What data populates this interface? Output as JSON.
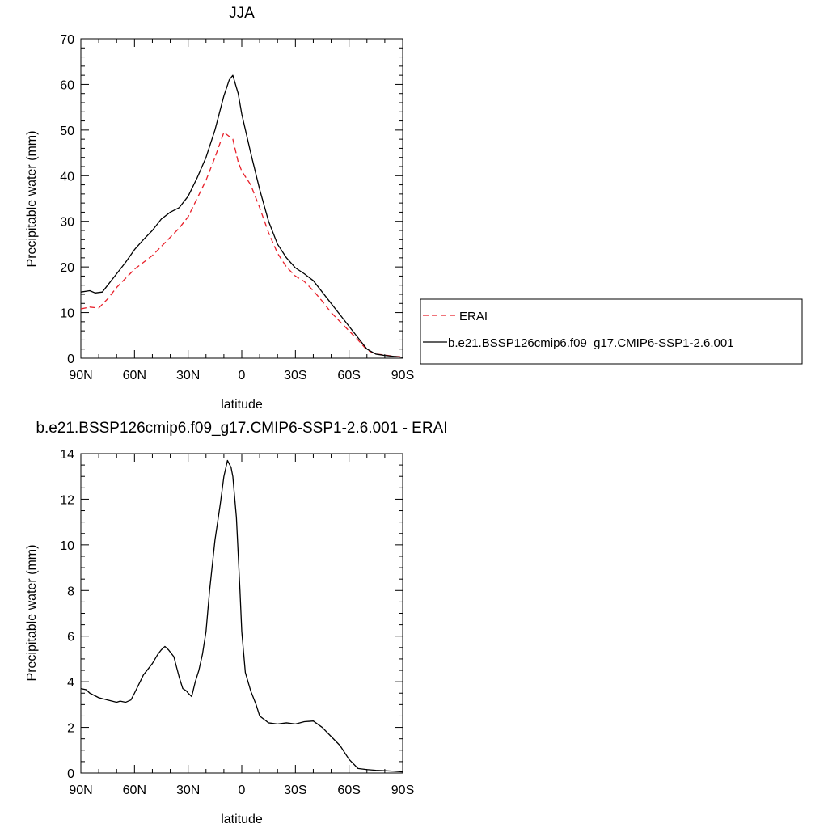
{
  "chart_data": [
    {
      "type": "line",
      "title": "JJA",
      "xlabel": "latitude",
      "ylabel": "Precipitable water (mm)",
      "xlim": [
        90,
        -90
      ],
      "ylim": [
        0,
        70
      ],
      "x_ticks": [
        90,
        60,
        30,
        0,
        -30,
        -60,
        -90
      ],
      "x_tick_labels": [
        "90N",
        "60N",
        "30N",
        "0",
        "30S",
        "60S",
        "90S"
      ],
      "y_ticks": [
        0,
        10,
        20,
        30,
        40,
        50,
        60,
        70
      ],
      "y_tick_labels": [
        "0",
        "10",
        "20",
        "30",
        "40",
        "50",
        "60",
        "70"
      ],
      "grid": false,
      "legend_position": "right",
      "series": [
        {
          "name": "ERAI",
          "color": "#e8202a",
          "dash": "dashed",
          "x": [
            90,
            85,
            80,
            75,
            70,
            65,
            60,
            55,
            50,
            45,
            40,
            35,
            30,
            25,
            20,
            15,
            10,
            5,
            2,
            0,
            -5,
            -10,
            -15,
            -20,
            -25,
            -30,
            -35,
            -40,
            -45,
            -50,
            -55,
            -60,
            -65,
            -70,
            -75,
            -80,
            -85,
            -90
          ],
          "values": [
            10.8,
            11.2,
            11.0,
            13.0,
            15.5,
            17.5,
            19.5,
            21.0,
            22.5,
            24.5,
            26.5,
            28.5,
            31.0,
            35.0,
            39.0,
            44.0,
            49.5,
            48.0,
            43.0,
            41.0,
            38.0,
            33.0,
            27.5,
            23.0,
            20.0,
            18.0,
            16.8,
            14.8,
            12.5,
            10.0,
            8.0,
            6.0,
            4.0,
            1.8,
            0.9,
            0.7,
            0.4,
            0.3
          ]
        },
        {
          "name": "b.e21.BSSP126cmip6.f09_g17.CMIP6-SSP1-2.6.001",
          "color": "#000000",
          "dash": "solid",
          "x": [
            90,
            85,
            82,
            78,
            75,
            70,
            65,
            60,
            55,
            50,
            45,
            40,
            35,
            30,
            25,
            20,
            15,
            10,
            7,
            5,
            2,
            0,
            -5,
            -10,
            -15,
            -20,
            -25,
            -30,
            -35,
            -40,
            -45,
            -50,
            -55,
            -60,
            -65,
            -70,
            -75,
            -80,
            -85,
            -90
          ],
          "values": [
            14.5,
            14.8,
            14.3,
            14.5,
            16.0,
            18.5,
            21.0,
            23.8,
            26.0,
            28.0,
            30.5,
            32.0,
            33.0,
            35.5,
            39.5,
            44.0,
            50.0,
            57.5,
            61.0,
            62.0,
            58.0,
            53.5,
            45.0,
            37.0,
            30.0,
            25.0,
            22.0,
            19.8,
            18.5,
            17.0,
            14.5,
            12.0,
            9.5,
            7.0,
            4.5,
            2.0,
            0.9,
            0.6,
            0.4,
            0.2
          ]
        }
      ]
    },
    {
      "type": "line",
      "title": "b.e21.BSSP126cmip6.f09_g17.CMIP6-SSP1-2.6.001 - ERAI",
      "xlabel": "latitude",
      "ylabel": "Precipitable water (mm)",
      "xlim": [
        90,
        -90
      ],
      "ylim": [
        0,
        14
      ],
      "x_ticks": [
        90,
        60,
        30,
        0,
        -30,
        -60,
        -90
      ],
      "x_tick_labels": [
        "90N",
        "60N",
        "30N",
        "0",
        "30S",
        "60S",
        "90S"
      ],
      "y_ticks": [
        0,
        2,
        4,
        6,
        8,
        10,
        12,
        14
      ],
      "y_tick_labels": [
        "0",
        "2",
        "4",
        "6",
        "8",
        "10",
        "12",
        "14"
      ],
      "grid": false,
      "series": [
        {
          "color": "#000000",
          "dash": "solid",
          "x": [
            90,
            87,
            85,
            80,
            75,
            70,
            68,
            65,
            62,
            60,
            55,
            50,
            47,
            45,
            43,
            41,
            40,
            38,
            35,
            33,
            31,
            30,
            28,
            26,
            24,
            22,
            20,
            18,
            15,
            12,
            10,
            8,
            6,
            5,
            3,
            1,
            0,
            -2,
            -5,
            -8,
            -10,
            -15,
            -20,
            -25,
            -30,
            -35,
            -40,
            -45,
            -50,
            -55,
            -60,
            -65,
            -70,
            -75,
            -80,
            -85,
            -90
          ],
          "values": [
            3.7,
            3.65,
            3.5,
            3.3,
            3.2,
            3.1,
            3.15,
            3.1,
            3.2,
            3.5,
            4.3,
            4.8,
            5.2,
            5.4,
            5.55,
            5.4,
            5.3,
            5.1,
            4.2,
            3.7,
            3.6,
            3.5,
            3.35,
            4.0,
            4.5,
            5.2,
            6.2,
            8.0,
            10.2,
            11.8,
            13.0,
            13.7,
            13.4,
            13.0,
            11.2,
            8.0,
            6.2,
            4.4,
            3.6,
            3.0,
            2.5,
            2.2,
            2.15,
            2.2,
            2.15,
            2.25,
            2.28,
            2.0,
            1.6,
            1.2,
            0.6,
            0.2,
            0.15,
            0.12,
            0.1,
            0.08,
            0.05
          ]
        }
      ]
    }
  ]
}
